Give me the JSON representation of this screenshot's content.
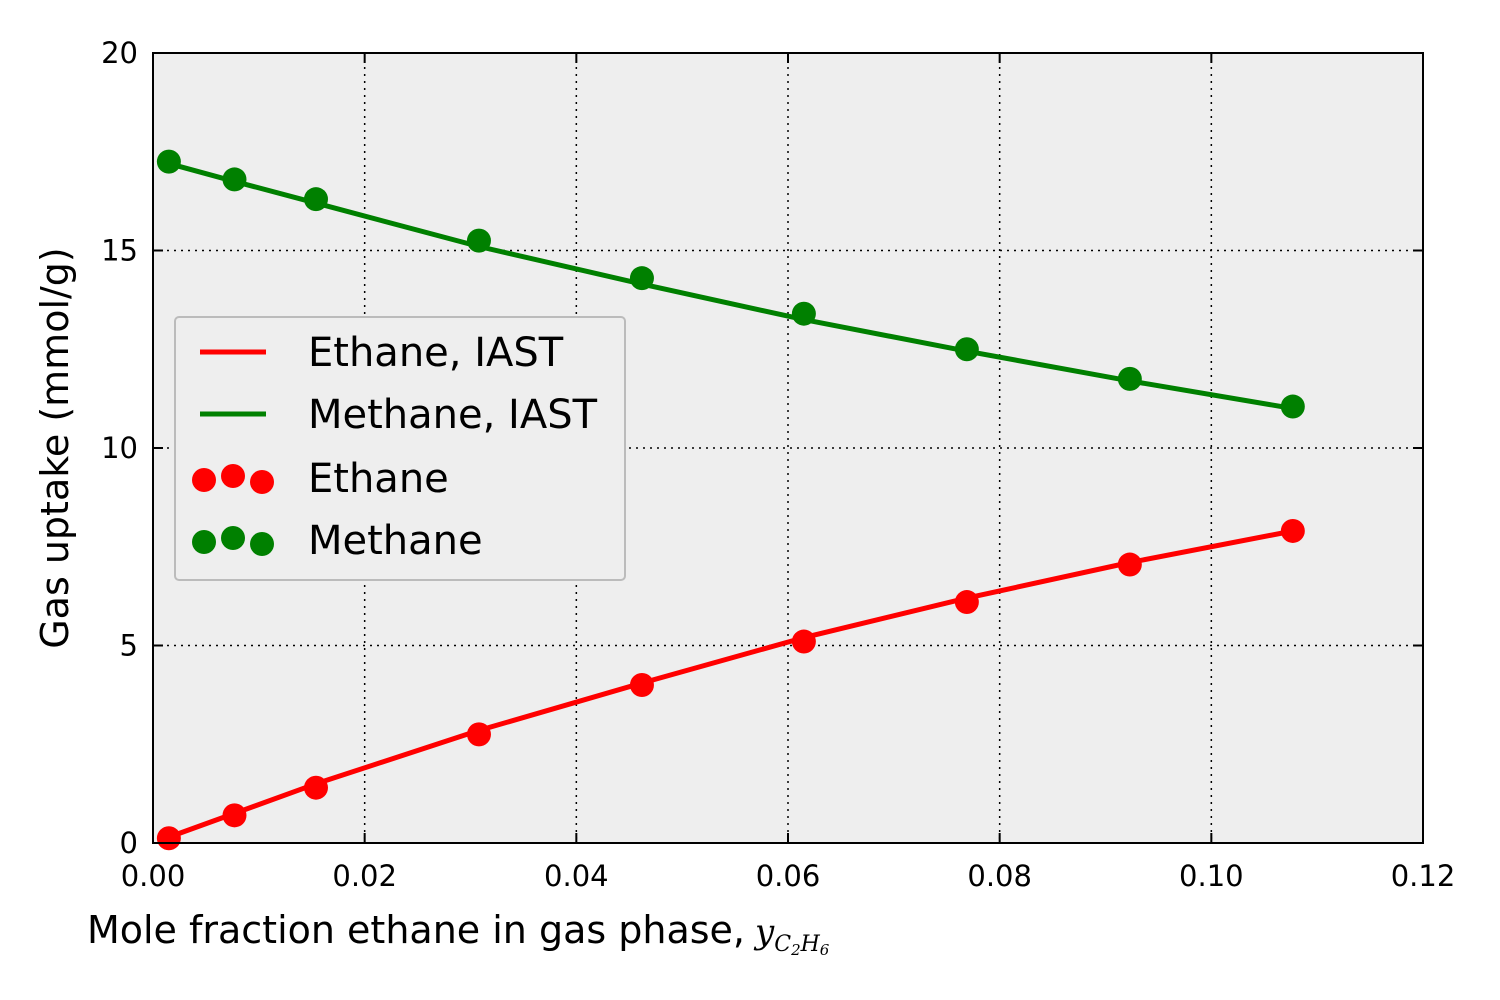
{
  "chart_data": {
    "type": "line",
    "title": "",
    "xlabel": "Mole fraction ethane in gas phase,",
    "xlabel_math": {
      "base": "y",
      "sub1": "C",
      "sub2": "2",
      "sub3": "H",
      "sub4": "6"
    },
    "ylabel": "Gas uptake (mmol/g)",
    "xlim": [
      0.0,
      0.12
    ],
    "ylim": [
      0,
      20
    ],
    "xticks": [
      0.0,
      0.02,
      0.04,
      0.06,
      0.08,
      0.1,
      0.12
    ],
    "xtick_labels": [
      "0.00",
      "0.02",
      "0.04",
      "0.06",
      "0.08",
      "0.10",
      "0.12"
    ],
    "yticks": [
      0,
      5,
      10,
      15,
      20
    ],
    "ytick_labels": [
      "0",
      "5",
      "10",
      "15",
      "20"
    ],
    "grid": true,
    "legend_position": "center-left",
    "series": [
      {
        "name": "Ethane, IAST",
        "kind": "line",
        "color": "#ff0000",
        "x": [
          0.0015,
          0.0077,
          0.0154,
          0.0308,
          0.0462,
          0.0615,
          0.0769,
          0.0923,
          0.1077
        ],
        "y": [
          0.15,
          0.75,
          1.5,
          2.85,
          4.05,
          5.2,
          6.2,
          7.1,
          7.9
        ]
      },
      {
        "name": "Methane, IAST",
        "kind": "line",
        "color": "#008000",
        "x": [
          0.0015,
          0.0077,
          0.0154,
          0.0308,
          0.0462,
          0.0615,
          0.0769,
          0.0923,
          0.1077
        ],
        "y": [
          17.2,
          16.75,
          16.2,
          15.1,
          14.15,
          13.25,
          12.45,
          11.7,
          11.0
        ]
      },
      {
        "name": "Ethane",
        "kind": "scatter",
        "color": "#ff0000",
        "x": [
          0.0015,
          0.0077,
          0.0154,
          0.0308,
          0.0462,
          0.0615,
          0.0769,
          0.0923,
          0.1077
        ],
        "y": [
          0.12,
          0.7,
          1.4,
          2.75,
          4.0,
          5.1,
          6.1,
          7.05,
          7.9
        ]
      },
      {
        "name": "Methane",
        "kind": "scatter",
        "color": "#008000",
        "x": [
          0.0015,
          0.0077,
          0.0154,
          0.0308,
          0.0462,
          0.0615,
          0.0769,
          0.0923,
          0.1077
        ],
        "y": [
          17.25,
          16.8,
          16.3,
          15.25,
          14.3,
          13.4,
          12.5,
          11.75,
          11.05
        ]
      }
    ]
  }
}
